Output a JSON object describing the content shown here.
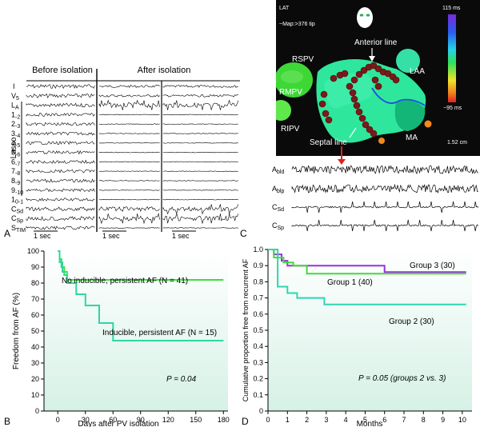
{
  "panels": {
    "A": {
      "letter": "A",
      "headers": {
        "before": "Before isolation",
        "after": "After isolation"
      },
      "lasso_label": "Lasso",
      "channels": [
        "I",
        "V5",
        "LA",
        "1-2",
        "2-3",
        "3-4",
        "4-5",
        "5-6",
        "6-7",
        "7-8",
        "8-9",
        "9-10",
        "10-1",
        "CSd",
        "CSp",
        "STIM"
      ],
      "scale_labels": [
        "1 sec",
        "1 sec",
        "1 sec"
      ]
    },
    "C": {
      "letter": "C",
      "map": {
        "mode": "LAT",
        "map_note": "~Map:>376 tip",
        "scale_top": "115 ms",
        "scale_bottom": "−95 ms",
        "distance": "1.52 cm",
        "labels": {
          "rspv": "RSPV",
          "rmpv": "RMPV",
          "ripv": "RIPV",
          "laa": "LAA",
          "ma": "MA",
          "anterior_line": "Anterior line",
          "septal_line": "Septal line"
        },
        "colors": {
          "map_bg": "#0a0a0a",
          "atrium": "#2fe59a",
          "ablation_marks": "#7a1a1a",
          "pv_green": "#39d433",
          "arrow": "#e0201e"
        }
      },
      "channels": [
        "Abld",
        "Ablp",
        "CSd",
        "CSp"
      ]
    },
    "B": {
      "letter": "B",
      "ylabel": "Freedom from AF (%)",
      "xlabel": "Days after PV isolation",
      "p_value": "P = 0.04"
    },
    "D": {
      "letter": "D",
      "ylabel": "Cumulative proportion free from recurrent AF",
      "xlabel": "Months",
      "p_value": "P = 0.05 (groups 2 vs. 3)"
    }
  },
  "chart_data": [
    {
      "type": "line",
      "step": true,
      "xlabel": "Days after PV isolation",
      "ylabel": "Freedom from AF (%)",
      "xlim": [
        -15,
        185
      ],
      "ylim": [
        0,
        100
      ],
      "xticks": [
        0,
        30,
        60,
        90,
        120,
        150,
        180
      ],
      "yticks": [
        0,
        10,
        20,
        30,
        40,
        50,
        60,
        70,
        80,
        90,
        100
      ],
      "series": [
        {
          "name": "No inducible, persistent AF (N = 41)",
          "color": "#39e03a",
          "x": [
            0,
            2,
            4,
            7,
            10,
            180
          ],
          "y": [
            100,
            95,
            90,
            85,
            82,
            82
          ]
        },
        {
          "name": "Inducible, persistent AF (N = 15)",
          "color": "#2fd6a4",
          "x": [
            0,
            2,
            5,
            10,
            20,
            30,
            45,
            60,
            180
          ],
          "y": [
            100,
            93,
            87,
            80,
            73,
            66,
            55,
            44,
            44
          ]
        }
      ],
      "annotations": [
        "P = 0.04"
      ]
    },
    {
      "type": "line",
      "step": true,
      "xlabel": "Months",
      "ylabel": "Cumulative proportion free from recurrent AF",
      "xlim": [
        0,
        10.5
      ],
      "ylim": [
        0,
        1.0
      ],
      "xticks": [
        0,
        1,
        2,
        3,
        4,
        5,
        6,
        7,
        8,
        9,
        10
      ],
      "yticks": [
        0,
        0.1,
        0.2,
        0.3,
        0.4,
        0.5,
        0.6,
        0.7,
        0.8,
        0.9,
        1.0
      ],
      "series": [
        {
          "name": "Group 3 (30)",
          "color": "#9b30d9",
          "x": [
            0,
            0.3,
            0.7,
            1.0,
            6.0,
            10.2
          ],
          "y": [
            1.0,
            0.97,
            0.93,
            0.9,
            0.86,
            0.86
          ]
        },
        {
          "name": "Group 1 (40)",
          "color": "#44d93c",
          "x": [
            0,
            0.3,
            0.8,
            1.3,
            2.0,
            10.2
          ],
          "y": [
            1.0,
            0.95,
            0.92,
            0.9,
            0.85,
            0.85
          ]
        },
        {
          "name": "Group 2 (30)",
          "color": "#2fd6b0",
          "x": [
            0,
            0.5,
            1.0,
            1.5,
            2.9,
            10.2
          ],
          "y": [
            1.0,
            0.77,
            0.73,
            0.7,
            0.66,
            0.66
          ]
        }
      ],
      "annotations": [
        "P = 0.05 (groups 2 vs. 3)"
      ]
    }
  ]
}
